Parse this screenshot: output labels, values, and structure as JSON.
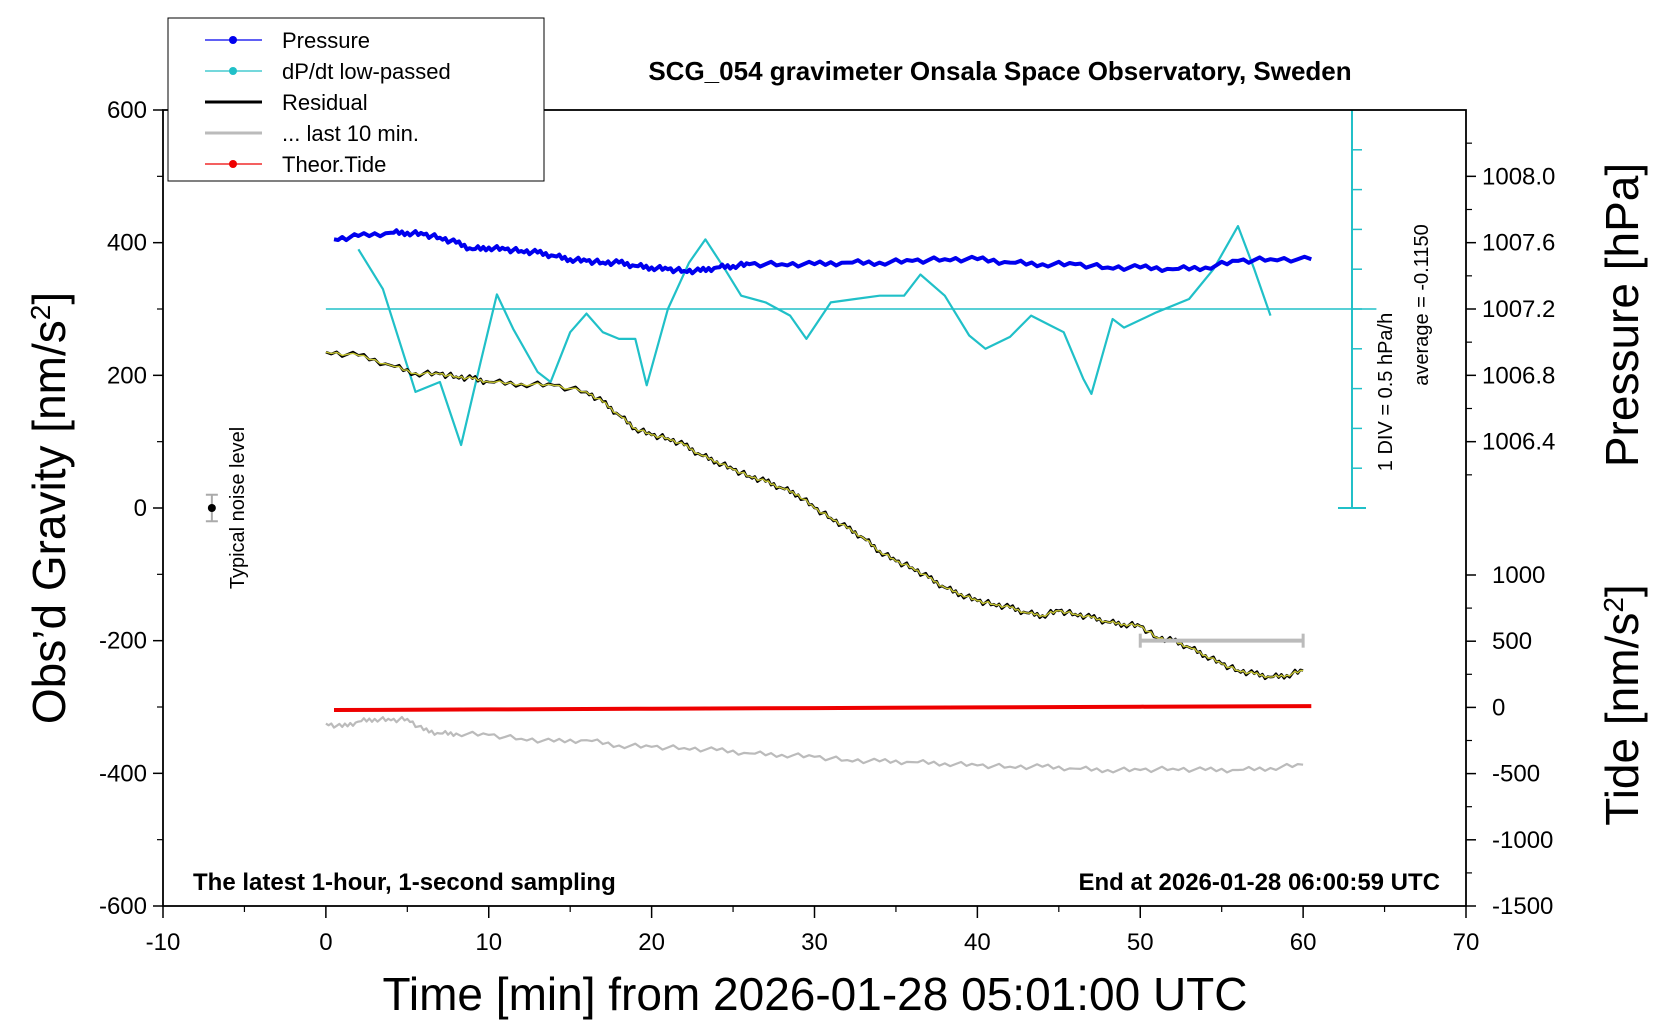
{
  "chart_data": {
    "type": "line",
    "title": "SCG_054 gravimeter Onsala Space Observatory, Sweden",
    "xlabel": "Time [min] from 2026-01-28 05:01:00 UTC",
    "ylabel_left": "Obs’d Gravity [nm/s",
    "ylabel_left_sup": "2",
    "ylabel_left_end": "]",
    "ylabel_right_top": "Pressure [hPa]",
    "ylabel_right_bottom": "Tide [nm/s",
    "ylabel_right_bottom_sup": "2",
    "ylabel_right_bottom_end": "]",
    "xlim": [
      -10,
      70
    ],
    "ylim": [
      -600,
      600
    ],
    "pressure_lim": [
      1006.0,
      1008.4
    ],
    "tide_lim": [
      -1500,
      1000
    ],
    "x_ticks": [
      "-10",
      "0",
      "10",
      "20",
      "30",
      "40",
      "50",
      "60",
      "70"
    ],
    "y_ticks": [
      "-600",
      "-400",
      "-200",
      "0",
      "200",
      "400",
      "600"
    ],
    "pressure_ticks": [
      "1006.4",
      "1006.8",
      "1007.2",
      "1007.6",
      "1008.0"
    ],
    "tide_ticks": [
      "-1500",
      "-1000",
      "-500",
      "0",
      "500",
      "1000"
    ],
    "bottom_left_note": "The latest 1-hour, 1-second sampling",
    "bottom_right_note": "End at 2026-01-28 06:00:59 UTC",
    "noise_label": "Typical noise level",
    "dpdt_scale_label": "1 DIV = 0.5 hPa/h",
    "dpdt_average_label": "average = -0.1150",
    "colors": {
      "pressure": "#0000ee",
      "dpdt": "#20c0c8",
      "residual": "#000000",
      "filtered": "#c8c832",
      "last10": "#bbbbbb",
      "tide": "#ee0000"
    },
    "legend": [
      {
        "name": "Pressure",
        "color": "#0000ee",
        "marker": true
      },
      {
        "name": "dP/dt low-passed",
        "color": "#20c0c8",
        "marker": true
      },
      {
        "name": "Residual",
        "color": "#000000",
        "marker": false
      },
      {
        "name": "... last 10 min.",
        "color": "#bbbbbb",
        "marker": false
      },
      {
        "name": "Theor.Tide",
        "color": "#ee0000",
        "marker": true
      }
    ],
    "series": [
      {
        "name": "Pressure",
        "axis": "pressure",
        "x": [
          0.5,
          2,
          4,
          5,
          6,
          7,
          8,
          9,
          10,
          11,
          12,
          13,
          14,
          15,
          16,
          17,
          18,
          19,
          20,
          21,
          22,
          23,
          24,
          25,
          26,
          28,
          30,
          32,
          34,
          36,
          38,
          40,
          42,
          44,
          46,
          48,
          50,
          52,
          54,
          56,
          58,
          60.5
        ],
        "y": [
          1007.62,
          1007.64,
          1007.66,
          1007.66,
          1007.65,
          1007.63,
          1007.6,
          1007.56,
          1007.57,
          1007.56,
          1007.55,
          1007.54,
          1007.52,
          1007.5,
          1007.49,
          1007.48,
          1007.48,
          1007.46,
          1007.45,
          1007.44,
          1007.43,
          1007.43,
          1007.45,
          1007.46,
          1007.47,
          1007.47,
          1007.47,
          1007.48,
          1007.48,
          1007.49,
          1007.5,
          1007.5,
          1007.48,
          1007.47,
          1007.47,
          1007.45,
          1007.45,
          1007.44,
          1007.45,
          1007.49,
          1007.5,
          1007.5
        ]
      },
      {
        "name": "dP/dt low-passed",
        "axis": "gravity",
        "x": [
          2,
          3.5,
          5.5,
          7,
          8.3,
          9.5,
          10.5,
          11.5,
          13,
          13.8,
          15,
          16,
          17,
          18,
          19,
          19.7,
          21,
          22.3,
          23.3,
          24.5,
          25.5,
          27,
          28.5,
          29.5,
          31,
          32.5,
          34,
          35.5,
          36.5,
          38,
          39.5,
          40.5,
          42,
          43.3,
          44.5,
          45.3,
          46.5,
          47,
          48.3,
          49,
          51,
          53,
          54.5,
          56,
          57,
          58
        ],
        "y": [
          390,
          330,
          175,
          190,
          95,
          220,
          322,
          270,
          205,
          190,
          265,
          293,
          265,
          255,
          255,
          185,
          300,
          370,
          405,
          360,
          320,
          310,
          290,
          255,
          310,
          315,
          320,
          320,
          352,
          320,
          260,
          240,
          258,
          290,
          275,
          265,
          195,
          172,
          285,
          272,
          295,
          315,
          360,
          425,
          360,
          290
        ]
      },
      {
        "name": "Residual",
        "axis": "gravity",
        "x": [
          0,
          2,
          4,
          5.5,
          7,
          8,
          9,
          10,
          12,
          14,
          16,
          17,
          18,
          19,
          20,
          21,
          22,
          23,
          24,
          25,
          26,
          27,
          28,
          29,
          30,
          31,
          32,
          33,
          34,
          35,
          36,
          37,
          38,
          39,
          40,
          41,
          42,
          43,
          44,
          45,
          46,
          47,
          48,
          49,
          50,
          51,
          52,
          53,
          54,
          55,
          56,
          57,
          58,
          59,
          60
        ],
        "y": [
          235,
          230,
          215,
          203,
          202,
          198,
          195,
          190,
          187,
          185,
          175,
          160,
          140,
          120,
          110,
          105,
          95,
          80,
          70,
          58,
          48,
          40,
          30,
          20,
          0,
          -15,
          -30,
          -45,
          -65,
          -80,
          -90,
          -105,
          -120,
          -130,
          -140,
          -145,
          -150,
          -158,
          -162,
          -155,
          -160,
          -165,
          -172,
          -175,
          -178,
          -195,
          -200,
          -210,
          -222,
          -235,
          -245,
          -250,
          -255,
          -252,
          -245
        ]
      },
      {
        "name": "... last 10 min.",
        "axis": "gravity",
        "x": [
          0,
          1,
          2,
          3,
          4,
          5,
          6,
          7,
          8,
          10,
          12,
          14,
          16,
          18,
          20,
          22,
          24,
          26,
          28,
          30,
          32,
          34,
          36,
          38,
          40,
          42,
          44,
          46,
          48,
          50,
          52,
          54,
          56,
          58,
          60
        ],
        "y": [
          -325,
          -330,
          -322,
          -318,
          -320,
          -318,
          -335,
          -340,
          -340,
          -342,
          -348,
          -352,
          -350,
          -358,
          -360,
          -362,
          -365,
          -370,
          -372,
          -375,
          -380,
          -382,
          -383,
          -385,
          -388,
          -390,
          -390,
          -393,
          -395,
          -395,
          -393,
          -395,
          -395,
          -392,
          -387
        ]
      },
      {
        "name": "Theor.Tide",
        "axis": "tide",
        "x": [
          0.5,
          10,
          20,
          30,
          40,
          50,
          60.5
        ],
        "y": [
          -20,
          -15,
          -10,
          -5,
          0,
          5,
          10
        ]
      }
    ],
    "noise_bar": {
      "x": -7,
      "y": 0,
      "err": 20
    },
    "last10_bar": {
      "x_start": 50,
      "x_end": 60,
      "y": -200
    }
  }
}
